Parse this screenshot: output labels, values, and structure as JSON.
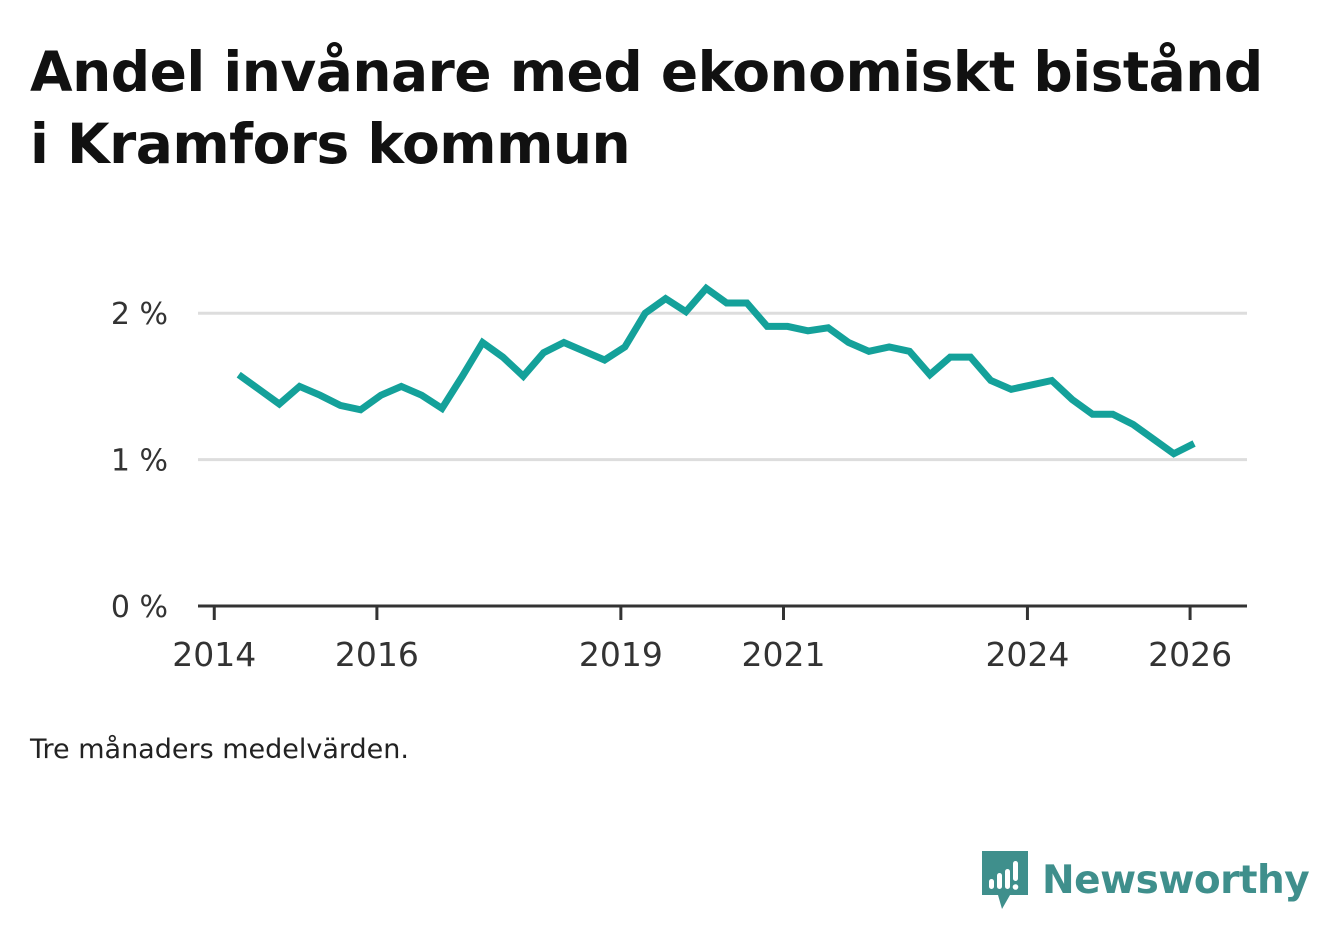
{
  "title": "Andel invånare med ekonomiskt bistånd i Kramfors kommun",
  "note": "Tre månaders medelvärden.",
  "brand": {
    "name": "Newsworthy",
    "icon": "newsworthy-logo-icon",
    "color": "#3f8f8c"
  },
  "colors": {
    "line": "#14a19a",
    "grid": "#dddddd",
    "axis": "#333333"
  },
  "chart_data": {
    "type": "line",
    "title": "Andel invånare med ekonomiskt bistånd i Kramfors kommun",
    "xlabel": "",
    "ylabel": "",
    "ylim": [
      0,
      2.5
    ],
    "xlim": [
      2013.8,
      2026.7
    ],
    "yticks": [
      0,
      1,
      2
    ],
    "ytick_labels": [
      "0 %",
      "1 %",
      "2 %"
    ],
    "xticks": [
      2014,
      2016,
      2019,
      2021,
      2024,
      2026
    ],
    "xtick_labels": [
      "2014",
      "2016",
      "2019",
      "2021",
      "2024",
      "2026"
    ],
    "grid": true,
    "series": [
      {
        "name": "Andel invånare med ekonomiskt bistånd",
        "x": [
          2014.3,
          2014.55,
          2014.8,
          2015.05,
          2015.3,
          2015.55,
          2015.8,
          2016.05,
          2016.3,
          2016.55,
          2016.8,
          2017.05,
          2017.3,
          2017.55,
          2017.8,
          2018.05,
          2018.3,
          2018.55,
          2018.8,
          2019.05,
          2019.3,
          2019.55,
          2019.8,
          2020.05,
          2020.3,
          2020.55,
          2020.8,
          2021.05,
          2021.3,
          2021.55,
          2021.8,
          2022.05,
          2022.3,
          2022.55,
          2022.8,
          2023.05,
          2023.3,
          2023.55,
          2023.8,
          2024.05,
          2024.3,
          2024.55,
          2024.8,
          2025.05,
          2025.3,
          2025.55,
          2025.8,
          2026.05
        ],
        "values": [
          1.58,
          1.48,
          1.38,
          1.5,
          1.44,
          1.37,
          1.34,
          1.44,
          1.5,
          1.44,
          1.35,
          1.57,
          1.8,
          1.7,
          1.57,
          1.73,
          1.8,
          1.74,
          1.68,
          1.77,
          2.0,
          2.1,
          2.01,
          2.17,
          2.07,
          2.07,
          1.91,
          1.91,
          1.88,
          1.9,
          1.8,
          1.74,
          1.77,
          1.74,
          1.58,
          1.7,
          1.7,
          1.54,
          1.48,
          1.51,
          1.54,
          1.41,
          1.31,
          1.31,
          1.24,
          1.14,
          1.04,
          1.11
        ]
      }
    ]
  }
}
